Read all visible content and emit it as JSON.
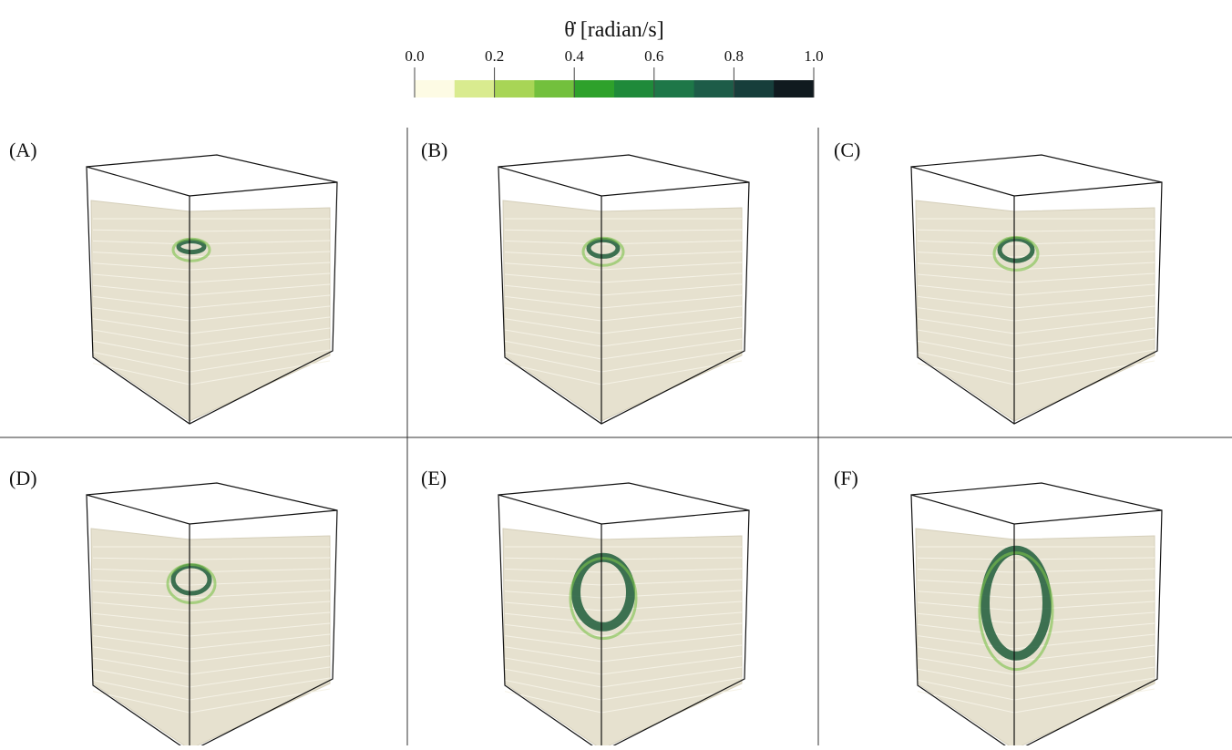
{
  "colorbar": {
    "title": "θ̇ [radian/s]",
    "range": [
      0,
      1
    ],
    "ticks": [
      {
        "value": 0,
        "label": "0.0"
      },
      {
        "value": 0.2,
        "label": "0.2"
      },
      {
        "value": 0.4,
        "label": "0.4"
      },
      {
        "value": 0.6,
        "label": "0.6"
      },
      {
        "value": 0.8,
        "label": "0.8"
      },
      {
        "value": 1,
        "label": "1.0"
      }
    ],
    "colors": [
      "#fdfbe4",
      "#d9eb8f",
      "#a8d556",
      "#73c03d",
      "#2ea12b",
      "#1f8a3a",
      "#1e7748",
      "#1d5c48",
      "#173e3b",
      "#101a1f"
    ]
  },
  "panels": [
    {
      "label": "(A)"
    },
    {
      "label": "(B)"
    },
    {
      "label": "(C)"
    },
    {
      "label": "(D)"
    },
    {
      "label": "(E)"
    },
    {
      "label": "(F)"
    }
  ]
}
